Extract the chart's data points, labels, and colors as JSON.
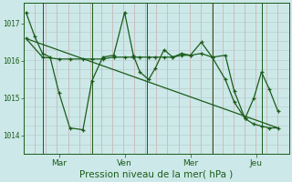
{
  "xlabel": "Pression niveau de la mer( hPa )",
  "bg_color": "#cce8e8",
  "line_color": "#1a5c1a",
  "tick_color": "#1a5c1a",
  "label_color": "#1a5c1a",
  "grid_color_v": "#c8a0a0",
  "grid_color_h": "#b8c8c8",
  "yticks": [
    1014,
    1015,
    1016,
    1017
  ],
  "ylim": [
    1013.5,
    1017.55
  ],
  "xlim": [
    -0.1,
    12.0
  ],
  "xtick_labels": [
    "Mar",
    "Ven",
    "Mer",
    "Jeu"
  ],
  "xtick_positions": [
    1.5,
    4.5,
    7.5,
    10.5
  ],
  "vlines_x": [
    0.75,
    3.0,
    5.5,
    8.5,
    10.75
  ],
  "n_hgrid": 16,
  "series1_x": [
    0.0,
    0.4,
    0.75,
    1.1,
    1.5,
    2.0,
    2.6,
    3.0,
    3.5,
    4.0,
    4.5,
    4.9,
    5.2,
    5.6,
    5.9,
    6.3,
    6.7,
    7.1,
    7.5,
    8.0,
    8.5,
    9.1,
    9.5,
    10.0,
    10.4,
    10.75,
    11.1,
    11.5
  ],
  "series1_y": [
    1017.3,
    1016.65,
    1016.2,
    1016.1,
    1015.15,
    1014.2,
    1014.15,
    1015.45,
    1016.1,
    1016.15,
    1017.3,
    1016.15,
    1015.7,
    1015.5,
    1015.8,
    1016.3,
    1016.1,
    1016.2,
    1016.15,
    1016.5,
    1016.1,
    1016.15,
    1015.2,
    1014.45,
    1015.0,
    1015.7,
    1015.25,
    1014.65
  ],
  "series2_x": [
    0.0,
    0.75,
    1.5,
    2.0,
    2.6,
    3.0,
    3.5,
    4.0,
    4.5,
    4.9,
    5.2,
    5.6,
    5.9,
    6.3,
    6.7,
    7.1,
    7.5,
    8.0,
    8.5,
    9.1,
    9.5,
    10.0,
    10.4,
    10.75,
    11.1,
    11.5
  ],
  "series2_y": [
    1016.6,
    1016.1,
    1016.05,
    1016.05,
    1016.05,
    1016.05,
    1016.05,
    1016.1,
    1016.1,
    1016.1,
    1016.1,
    1016.1,
    1016.1,
    1016.1,
    1016.1,
    1016.15,
    1016.15,
    1016.2,
    1016.1,
    1015.5,
    1014.9,
    1014.45,
    1014.3,
    1014.25,
    1014.2,
    1014.2
  ],
  "trend_x": [
    0.0,
    11.5
  ],
  "trend_y": [
    1016.6,
    1014.2
  ],
  "figsize": [
    3.2,
    2.0
  ],
  "dpi": 100
}
